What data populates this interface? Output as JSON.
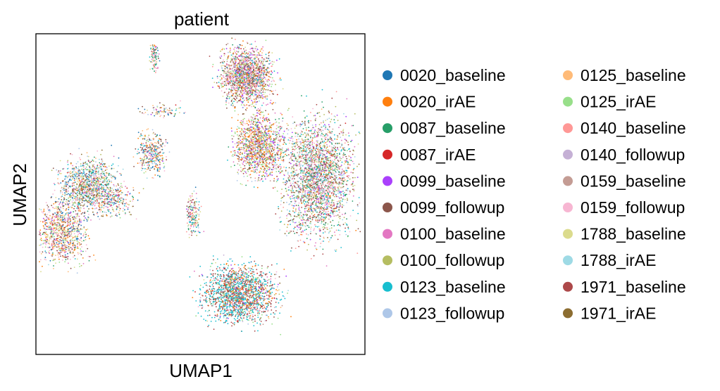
{
  "chart_data": {
    "type": "scatter",
    "title": "patient",
    "xlabel": "UMAP1",
    "ylabel": "UMAP2",
    "grid": false,
    "ticks": false,
    "legend_placement": "right",
    "legend_columns": 2,
    "xlim": [
      0,
      100
    ],
    "ylim": [
      0,
      100
    ],
    "series": [
      {
        "name": "0020_baseline",
        "color": "#1f77b4"
      },
      {
        "name": "0020_irAE",
        "color": "#ff7f0e"
      },
      {
        "name": "0087_baseline",
        "color": "#279e68"
      },
      {
        "name": "0087_irAE",
        "color": "#d62728"
      },
      {
        "name": "0099_baseline",
        "color": "#aa40fc"
      },
      {
        "name": "0099_followup",
        "color": "#8c564b"
      },
      {
        "name": "0100_baseline",
        "color": "#e377c2"
      },
      {
        "name": "0100_followup",
        "color": "#b5bd61"
      },
      {
        "name": "0123_baseline",
        "color": "#17becf"
      },
      {
        "name": "0123_followup",
        "color": "#aec7e8"
      },
      {
        "name": "0125_baseline",
        "color": "#ffbb78"
      },
      {
        "name": "0125_irAE",
        "color": "#98df8a"
      },
      {
        "name": "0140_baseline",
        "color": "#ff9896"
      },
      {
        "name": "0140_followup",
        "color": "#c5b0d5"
      },
      {
        "name": "0159_baseline",
        "color": "#c49c94"
      },
      {
        "name": "0159_followup",
        "color": "#f7b6d2"
      },
      {
        "name": "1788_baseline",
        "color": "#dbdb8d"
      },
      {
        "name": "1788_irAE",
        "color": "#9edae5"
      },
      {
        "name": "1971_baseline",
        "color": "#ad494a"
      },
      {
        "name": "1971_irAE",
        "color": "#8c6d31"
      }
    ],
    "clusters": [
      {
        "cx": 8,
        "cy": 38,
        "rx": 7,
        "ry": 9,
        "n": 900,
        "mix": [
          10,
          10,
          1,
          1,
          1,
          12,
          12,
          1,
          1,
          1
        ]
      },
      {
        "cx": 16,
        "cy": 53,
        "rx": 8,
        "ry": 8,
        "n": 1100,
        "mix": [
          10,
          2,
          6,
          1,
          1,
          8,
          6,
          10,
          6,
          10
        ]
      },
      {
        "cx": 35,
        "cy": 63,
        "rx": 4,
        "ry": 6,
        "n": 350,
        "mix": [
          10,
          6,
          1,
          1,
          1,
          8,
          1,
          3,
          3,
          3
        ]
      },
      {
        "cx": 48,
        "cy": 43,
        "rx": 2,
        "ry": 6,
        "n": 180,
        "mix": [
          3,
          1,
          10,
          1,
          1,
          2,
          10,
          1,
          6,
          2
        ]
      },
      {
        "cx": 38,
        "cy": 76,
        "rx": 6,
        "ry": 2,
        "n": 80,
        "mix": [
          6,
          1,
          1,
          1,
          1,
          4,
          2,
          1,
          1,
          1
        ]
      },
      {
        "cx": 36,
        "cy": 93,
        "rx": 1.2,
        "ry": 4,
        "n": 90,
        "mix": [
          2,
          1,
          10,
          1,
          1,
          2,
          4,
          1,
          3,
          2
        ]
      },
      {
        "cx": 64,
        "cy": 87,
        "rx": 7,
        "ry": 8,
        "n": 1700,
        "mix": [
          3,
          6,
          3,
          2,
          4,
          12,
          10,
          3,
          4,
          4
        ]
      },
      {
        "cx": 68,
        "cy": 65,
        "rx": 7,
        "ry": 9,
        "n": 1300,
        "mix": [
          1,
          16,
          4,
          1,
          8,
          8,
          6,
          2,
          2,
          3
        ]
      },
      {
        "cx": 86,
        "cy": 55,
        "rx": 10,
        "ry": 17,
        "n": 2600,
        "mix": [
          1,
          3,
          10,
          1,
          4,
          10,
          8,
          10,
          8,
          6
        ]
      },
      {
        "cx": 62,
        "cy": 19,
        "rx": 10,
        "ry": 8,
        "n": 1800,
        "mix": [
          1,
          6,
          1,
          1,
          1,
          4,
          2,
          2,
          24,
          1
        ]
      },
      {
        "cx": 24,
        "cy": 48,
        "rx": 6,
        "ry": 5,
        "n": 220,
        "mix": [
          6,
          2,
          2,
          1,
          1,
          6,
          3,
          2,
          2,
          2
        ]
      }
    ]
  }
}
